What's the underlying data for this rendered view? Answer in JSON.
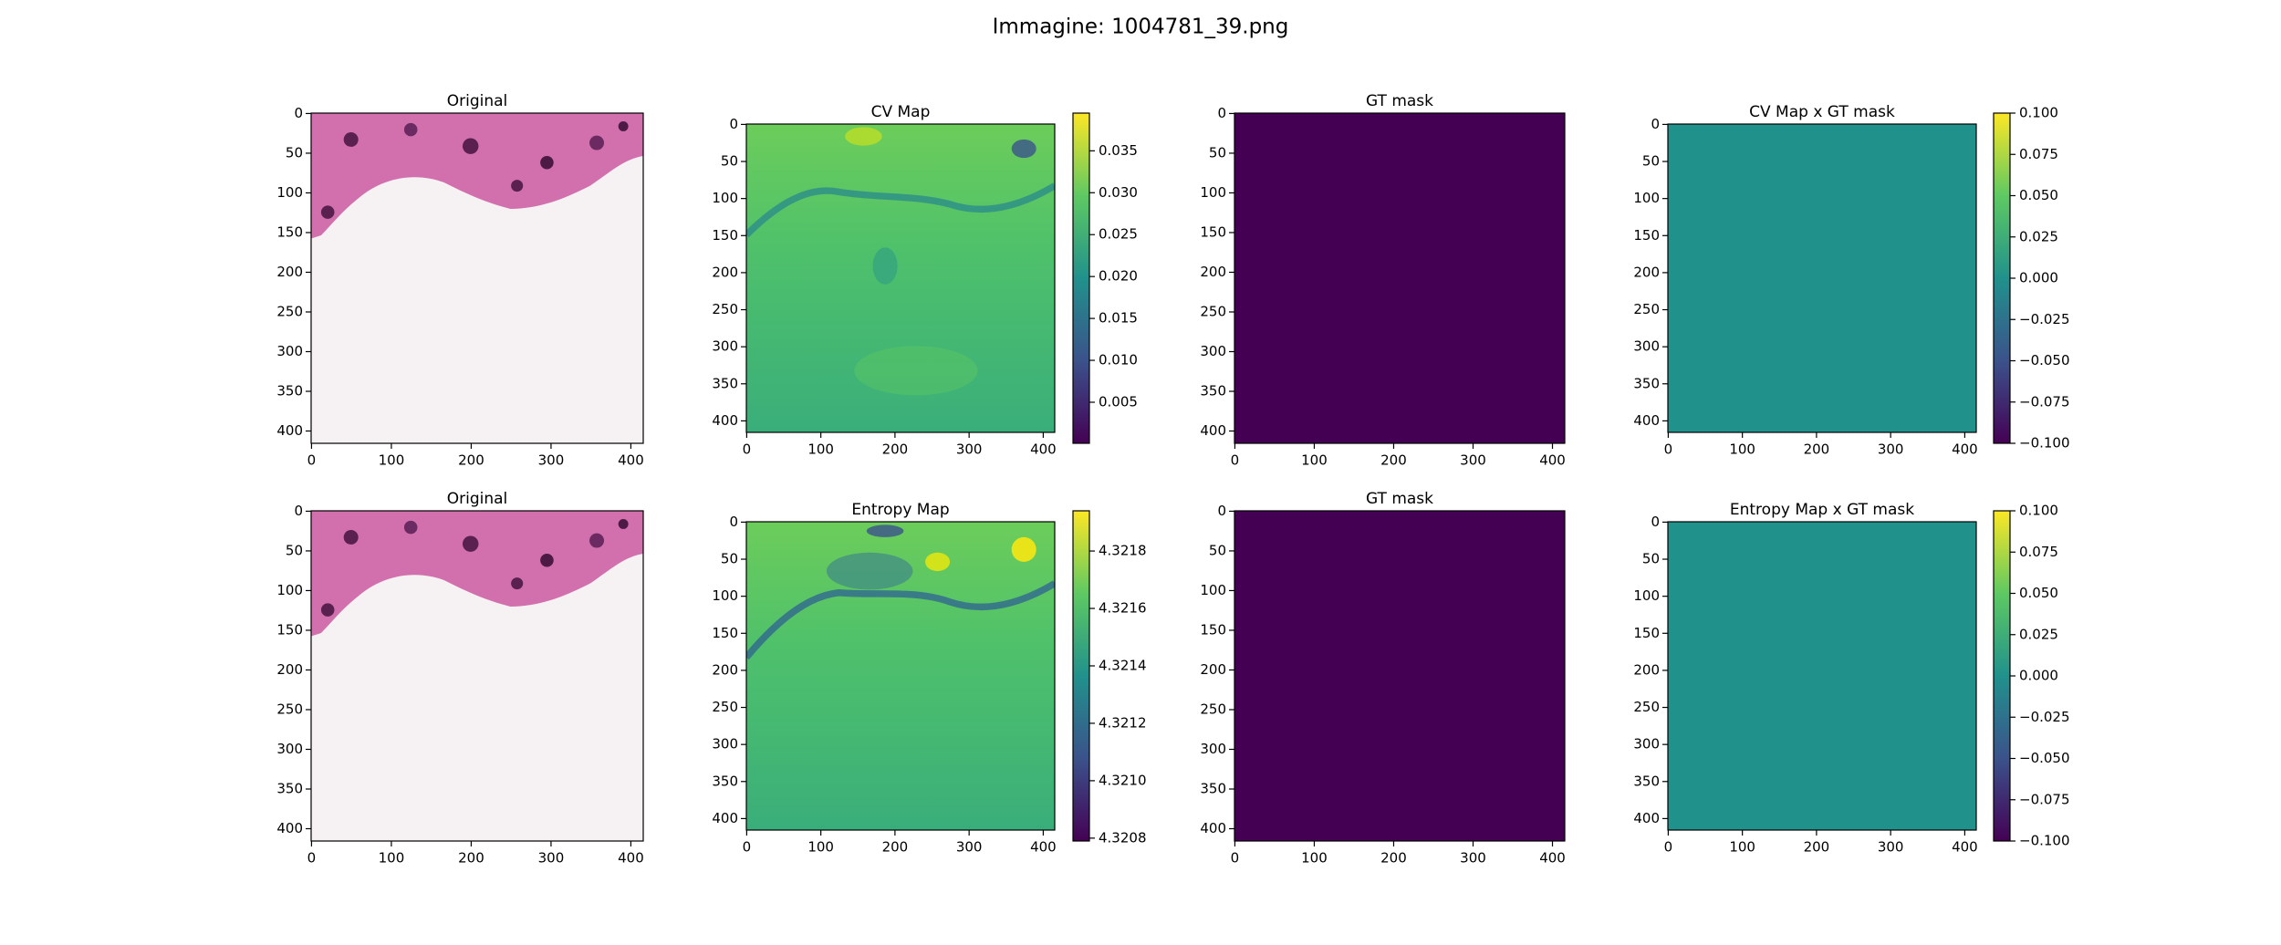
{
  "suptitle": "Immagine: 1004781_39.png",
  "chart_data": [
    {
      "type": "image",
      "title": "Original",
      "xlim": [
        -0.5,
        415.5
      ],
      "ylim": [
        415.5,
        -0.5
      ],
      "xticks": [
        0,
        100,
        200,
        300,
        400
      ],
      "yticks": [
        0,
        50,
        100,
        150,
        200,
        250,
        300,
        350,
        400
      ]
    },
    {
      "type": "heatmap",
      "title": "CV Map",
      "colormap": "viridis",
      "xlim": [
        -0.5,
        415.5
      ],
      "ylim": [
        415.5,
        -0.5
      ],
      "xticks": [
        0,
        100,
        200,
        300,
        400
      ],
      "yticks": [
        0,
        50,
        100,
        150,
        200,
        250,
        300,
        350,
        400
      ],
      "colorbar": {
        "lim": [
          0.0001,
          0.0395
        ],
        "ticks": [
          0.005,
          {
            "value": 0.01,
            "label": "0.010"
          },
          0.015,
          {
            "value": 0.02,
            "label": "0.020"
          },
          0.025,
          {
            "value": 0.03,
            "label": "0.030"
          },
          0.035
        ]
      }
    },
    {
      "type": "mask",
      "title": "GT mask",
      "colormap": "viridis",
      "xlim": [
        -0.5,
        415.5
      ],
      "ylim": [
        415.5,
        -0.5
      ],
      "xticks": [
        0,
        100,
        200,
        300,
        400
      ],
      "yticks": [
        0,
        50,
        100,
        150,
        200,
        250,
        300,
        350,
        400
      ]
    },
    {
      "type": "heatmap",
      "title": "CV Map x GT mask",
      "colormap": "viridis",
      "xlim": [
        -0.5,
        415.5
      ],
      "ylim": [
        415.5,
        -0.5
      ],
      "xticks": [
        0,
        100,
        200,
        300,
        400
      ],
      "yticks": [
        0,
        50,
        100,
        150,
        200,
        250,
        300,
        350,
        400
      ],
      "colorbar": {
        "lim": [
          -0.1,
          0.1
        ],
        "ticks": [
          {
            "value": -0.1,
            "label": "−0.100"
          },
          {
            "value": -0.075,
            "label": "−0.075"
          },
          {
            "value": -0.05,
            "label": "−0.050"
          },
          {
            "value": -0.025,
            "label": "−0.025"
          },
          {
            "value": 0,
            "label": "0.000"
          },
          0.025,
          {
            "value": 0.05,
            "label": "0.050"
          },
          0.075,
          {
            "value": 0.1,
            "label": "0.100"
          }
        ]
      }
    },
    {
      "type": "image",
      "title": "Original",
      "xlim": [
        -0.5,
        415.5
      ],
      "ylim": [
        415.5,
        -0.5
      ],
      "xticks": [
        0,
        100,
        200,
        300,
        400
      ],
      "yticks": [
        0,
        50,
        100,
        150,
        200,
        250,
        300,
        350,
        400
      ]
    },
    {
      "type": "heatmap",
      "title": "Entropy Map",
      "colormap": "viridis",
      "xlim": [
        -0.5,
        415.5
      ],
      "ylim": [
        415.5,
        -0.5
      ],
      "xticks": [
        0,
        100,
        200,
        300,
        400
      ],
      "yticks": [
        0,
        50,
        100,
        150,
        200,
        250,
        300,
        350,
        400
      ],
      "colorbar": {
        "lim": [
          4.32079,
          4.32194
        ],
        "ticks": [
          4.3208,
          {
            "value": 4.321,
            "label": "4.3210"
          },
          4.3212,
          4.3214,
          4.3216,
          4.3218
        ]
      }
    },
    {
      "type": "mask",
      "title": "GT mask",
      "colormap": "viridis",
      "xlim": [
        -0.5,
        415.5
      ],
      "ylim": [
        415.5,
        -0.5
      ],
      "xticks": [
        0,
        100,
        200,
        300,
        400
      ],
      "yticks": [
        0,
        50,
        100,
        150,
        200,
        250,
        300,
        350,
        400
      ]
    },
    {
      "type": "heatmap",
      "title": "Entropy Map x GT mask",
      "colormap": "viridis",
      "xlim": [
        -0.5,
        415.5
      ],
      "ylim": [
        415.5,
        -0.5
      ],
      "xticks": [
        0,
        100,
        200,
        300,
        400
      ],
      "yticks": [
        0,
        50,
        100,
        150,
        200,
        250,
        300,
        350,
        400
      ],
      "colorbar": {
        "lim": [
          -0.1,
          0.1
        ],
        "ticks": [
          {
            "value": -0.1,
            "label": "−0.100"
          },
          {
            "value": -0.075,
            "label": "−0.075"
          },
          {
            "value": -0.05,
            "label": "−0.050"
          },
          {
            "value": -0.025,
            "label": "−0.025"
          },
          {
            "value": 0,
            "label": "0.000"
          },
          0.025,
          {
            "value": 0.05,
            "label": "0.050"
          },
          0.075,
          {
            "value": 0.1,
            "label": "0.100"
          }
        ]
      }
    }
  ]
}
